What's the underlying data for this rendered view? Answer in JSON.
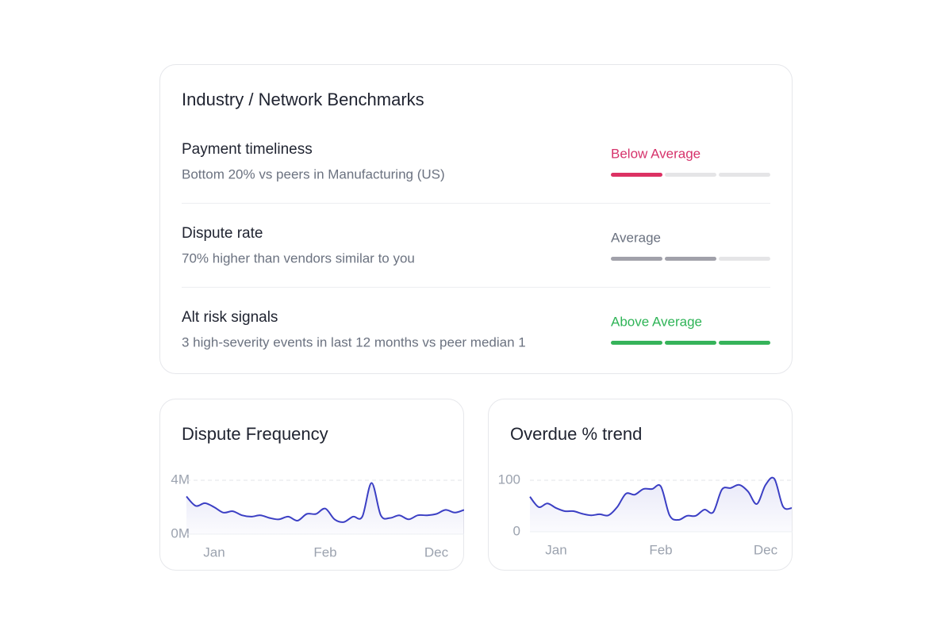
{
  "benchmarks": {
    "title": "Industry / Network Benchmarks",
    "levels": 3,
    "rows": [
      {
        "label": "Payment timeliness",
        "description": "Bottom 20% vs peers in Manufacturing (US)",
        "rating": "Below Average",
        "level": 1,
        "color": "#dc3163",
        "text_color": "#d6336c"
      },
      {
        "label": "Dispute rate",
        "description": "70% higher than vendors similar to you",
        "rating": "Average",
        "level": 2,
        "color": "#a1a1aa",
        "text_color": "#6b7280"
      },
      {
        "label": "Alt risk signals",
        "description": "3 high-severity events in last 12 months vs peer median 1",
        "rating": "Above Average",
        "level": 3,
        "color": "#36b35a",
        "text_color": "#2fb457"
      }
    ]
  },
  "chart_data": [
    {
      "type": "line",
      "title": "Dispute Frequency",
      "color": "#3b3fc4",
      "grid": true,
      "categories": [
        null,
        null,
        null,
        "Jan",
        null,
        null,
        null,
        null,
        null,
        null,
        null,
        null,
        null,
        null,
        null,
        "Feb",
        null,
        null,
        null,
        null,
        null,
        null,
        null,
        null,
        null,
        null,
        null,
        "Dec",
        null,
        null,
        null
      ],
      "values": [
        2.8,
        2.1,
        2.3,
        2.0,
        1.6,
        1.7,
        1.4,
        1.3,
        1.4,
        1.2,
        1.1,
        1.3,
        1.0,
        1.5,
        1.5,
        1.9,
        1.1,
        0.9,
        1.3,
        1.3,
        3.8,
        1.4,
        1.2,
        1.4,
        1.1,
        1.4,
        1.4,
        1.5,
        1.8,
        1.6,
        1.8
      ],
      "ylim": [
        0,
        4.4
      ],
      "yticks": [
        {
          "value": 0,
          "label": "0M"
        },
        {
          "value": 4,
          "label": "4M"
        }
      ]
    },
    {
      "type": "line",
      "title": "Overdue % trend",
      "color": "#3b3fc4",
      "grid": true,
      "categories": [
        null,
        null,
        null,
        "Jan",
        null,
        null,
        null,
        null,
        null,
        null,
        null,
        null,
        null,
        null,
        null,
        "Feb",
        null,
        null,
        null,
        null,
        null,
        null,
        null,
        null,
        null,
        null,
        null,
        "Dec",
        null,
        null,
        null
      ],
      "values": [
        68,
        48,
        55,
        46,
        40,
        40,
        35,
        32,
        34,
        32,
        48,
        74,
        72,
        83,
        83,
        88,
        32,
        23,
        31,
        31,
        43,
        38,
        82,
        85,
        91,
        78,
        54,
        91,
        103,
        49,
        46
      ],
      "ylim": [
        0,
        110
      ],
      "yticks": [
        0,
        100
      ]
    }
  ]
}
